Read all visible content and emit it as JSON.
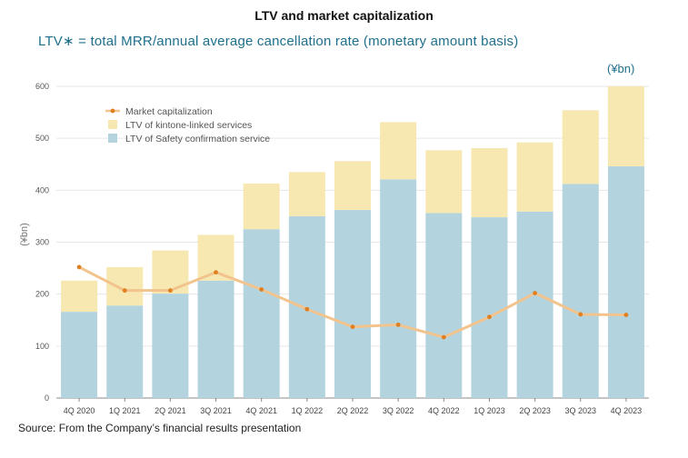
{
  "title": "LTV and market capitalization",
  "subtitle": "LTV∗ = total MRR/annual average cancellation rate (monetary amount basis)",
  "unit_label": "(¥bn)",
  "source": "Source: From the Company’s financial results presentation",
  "chart_data": {
    "type": "bar",
    "stacked": true,
    "categories": [
      "4Q 2020",
      "1Q 2021",
      "2Q 2021",
      "3Q 2021",
      "4Q 2021",
      "1Q 2022",
      "2Q 2022",
      "3Q 2022",
      "4Q 2022",
      "1Q 2023",
      "2Q 2023",
      "3Q 2023",
      "4Q 2023"
    ],
    "series": [
      {
        "name": "LTV of Safety confirmation service",
        "kind": "bar",
        "color": "#b3d4df",
        "values": [
          166,
          178,
          201,
          226,
          325,
          350,
          362,
          421,
          356,
          348,
          359,
          412,
          446
        ]
      },
      {
        "name": "LTV of kintone-linked services",
        "kind": "bar",
        "color": "#f6e8b0",
        "values": [
          60,
          74,
          83,
          88,
          88,
          85,
          94,
          110,
          121,
          133,
          133,
          142,
          154
        ]
      },
      {
        "name": "Market capitalization",
        "kind": "line",
        "color": "#f2c38c",
        "marker_color": "#e07f1f",
        "values": [
          252,
          207,
          207,
          242,
          209,
          171,
          137,
          141,
          117,
          156,
          202,
          161,
          160
        ]
      }
    ],
    "ylabel": "(¥bn)",
    "ylim": [
      0,
      600
    ],
    "yticks": [
      0,
      100,
      200,
      300,
      400,
      500,
      600
    ],
    "grid": true,
    "legend_placement": "top-left"
  }
}
